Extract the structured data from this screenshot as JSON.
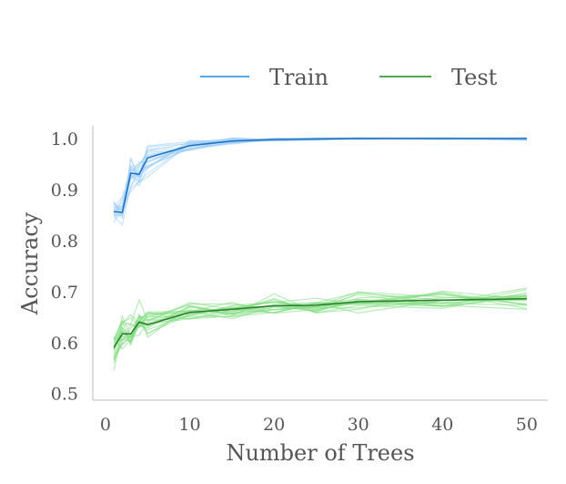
{
  "chart_data": {
    "type": "line",
    "x": [
      1,
      2,
      3,
      4,
      5,
      10,
      15,
      20,
      25,
      30,
      40,
      50
    ],
    "xlabel": "Number of Trees",
    "ylabel": "Accuracy",
    "xlim": [
      -1.5,
      52.5
    ],
    "ylim": [
      0.487,
      1.025
    ],
    "xticks": [
      0,
      10,
      20,
      30,
      40,
      50
    ],
    "yticks": [
      0.5,
      0.6,
      0.7,
      0.8,
      0.9,
      1.0
    ],
    "xtick_labels": [
      "0",
      "10",
      "20",
      "30",
      "40",
      "50"
    ],
    "ytick_labels": [
      "0.5",
      "0.6",
      "0.7",
      "0.8",
      "0.9",
      "1.0"
    ],
    "legend_position": "top-center, above plot",
    "grid": false,
    "series": [
      {
        "name": "Train",
        "color": "#1f8be8",
        "fold_color": "#9fcdfa",
        "values": [
          0.857,
          0.855,
          0.932,
          0.93,
          0.962,
          0.986,
          0.995,
          0.998,
          0.999,
          1.0,
          1.0,
          1.0
        ]
      },
      {
        "name": "Test",
        "color": "#1b8a1b",
        "fold_color": "#7fdc7f",
        "values": [
          0.59,
          0.617,
          0.617,
          0.64,
          0.635,
          0.659,
          0.665,
          0.672,
          0.673,
          0.68,
          0.683,
          0.686
        ]
      }
    ],
    "fold_count": 20
  }
}
